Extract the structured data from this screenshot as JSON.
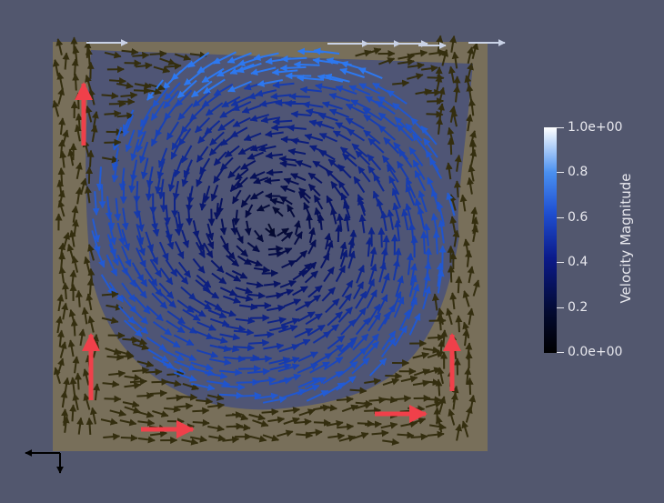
{
  "colorbar": {
    "title": "Velocity Magnitude",
    "ticks": [
      "1.0e+00",
      "0.8",
      "0.6",
      "0.4",
      "0.2",
      "0.0e+00"
    ],
    "colors": {
      "low": "#000000",
      "mid": "#0b1a8a",
      "high": "#ffffff"
    }
  },
  "scene": {
    "background": "#52576e",
    "fluid_region_color": "#786f5a",
    "vortex_color": "#4f5575",
    "highlight_arrow_color": "#f0404a"
  }
}
